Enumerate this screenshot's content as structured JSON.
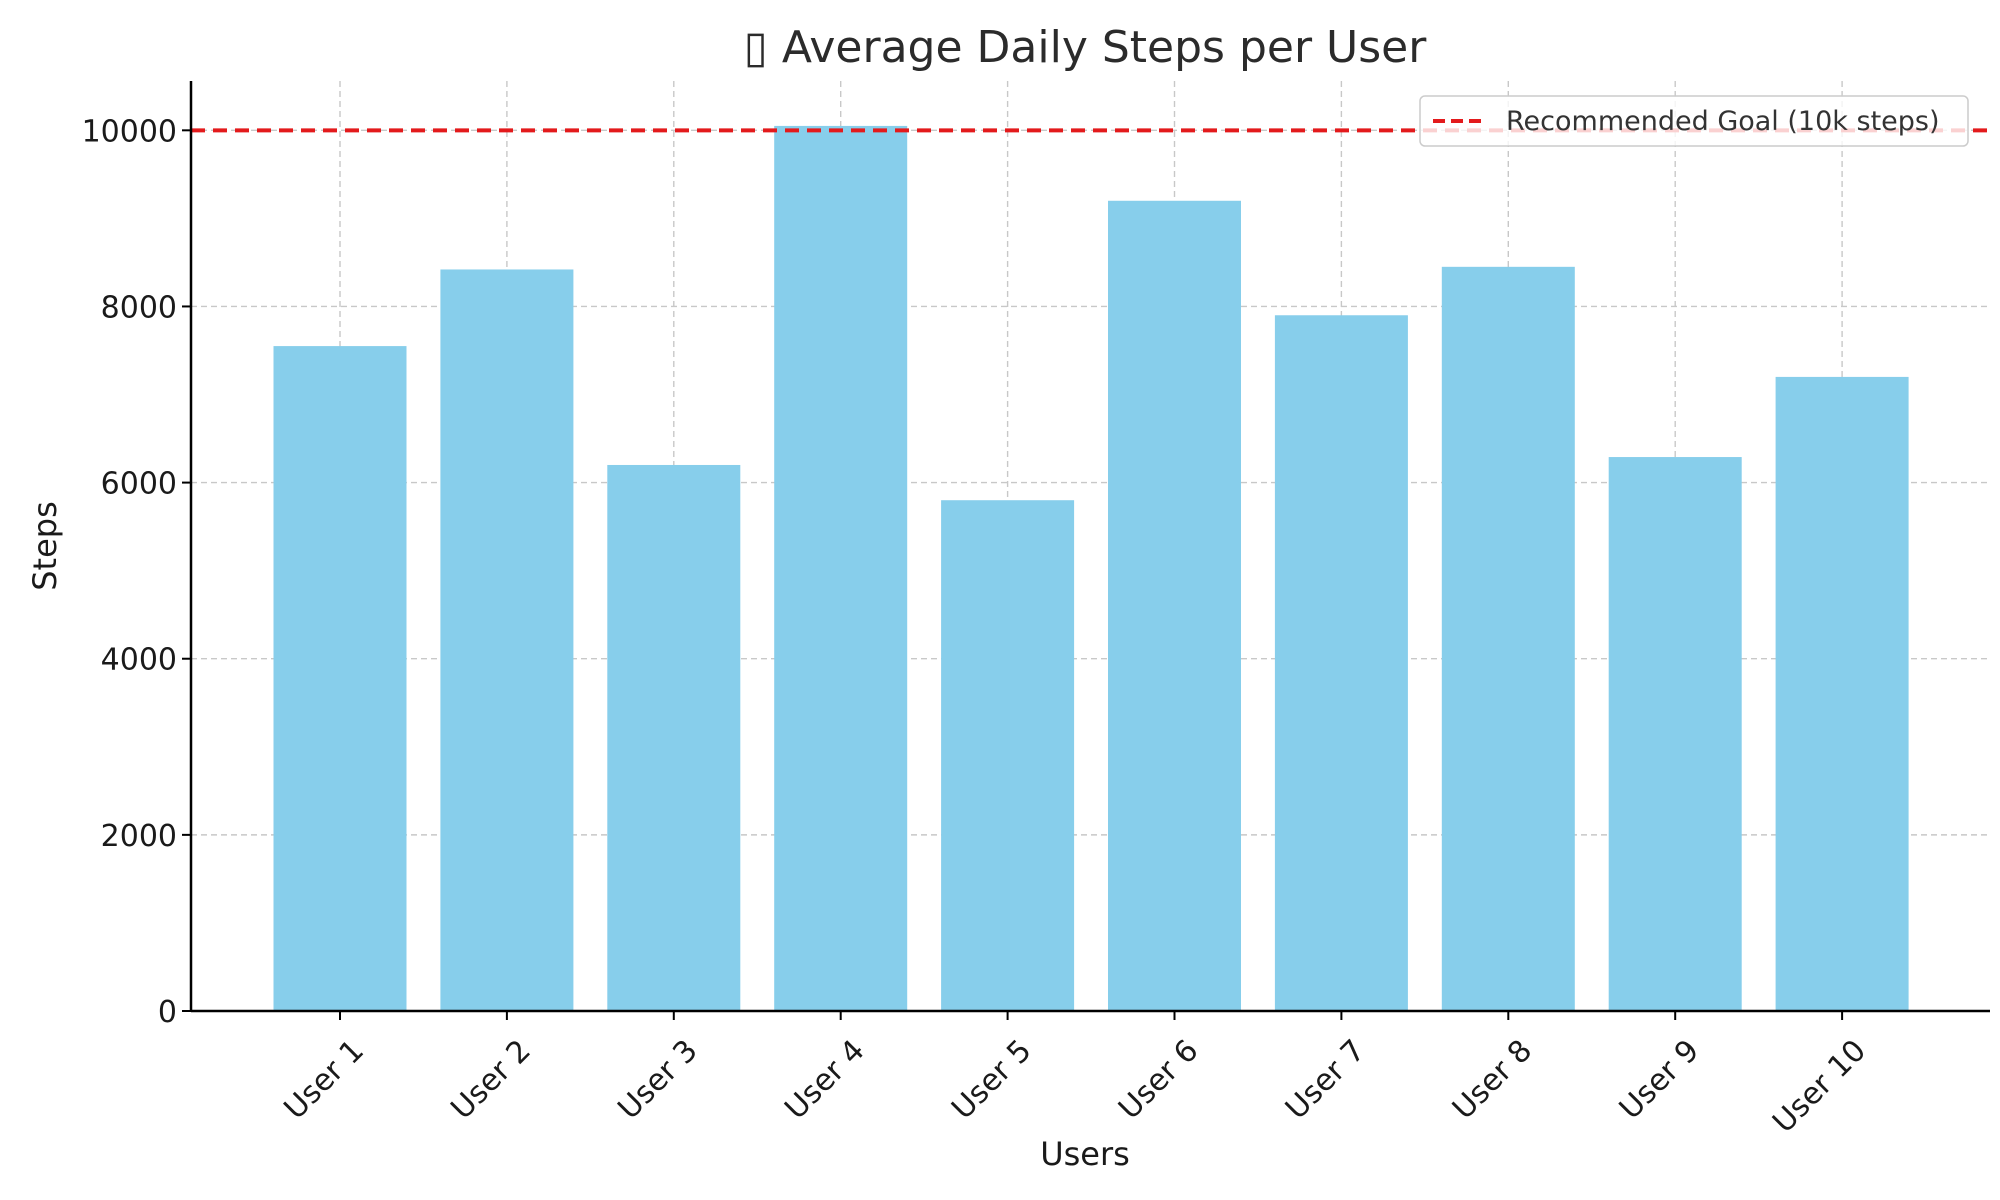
{
  "chart_data": {
    "type": "bar",
    "title": "▯ Average Daily Steps per User",
    "xlabel": "Users",
    "ylabel": "Steps",
    "categories": [
      "User 1",
      "User 2",
      "User 3",
      "User 4",
      "User 5",
      "User 6",
      "User 7",
      "User 8",
      "User 9",
      "User 10"
    ],
    "values": [
      7550,
      8420,
      6200,
      10050,
      5800,
      9200,
      7900,
      8450,
      6290,
      7200
    ],
    "ylim": [
      0,
      10560
    ],
    "yticks": [
      0,
      2000,
      4000,
      6000,
      8000,
      10000
    ],
    "ytick_labels": [
      "0",
      "2000",
      "4000",
      "6000",
      "8000",
      "10000"
    ],
    "grid": true,
    "reference_line": {
      "value": 10000,
      "label": "Recommended Goal (10k steps)",
      "style": "dashed"
    },
    "legend": {
      "placement": "top-right",
      "entries": [
        "Recommended Goal (10k steps)"
      ]
    },
    "colors": {
      "bar": "#87ceeb",
      "reference_line": "#e31a1c",
      "grid": "#c8c8c8",
      "axis": "#000000"
    }
  }
}
